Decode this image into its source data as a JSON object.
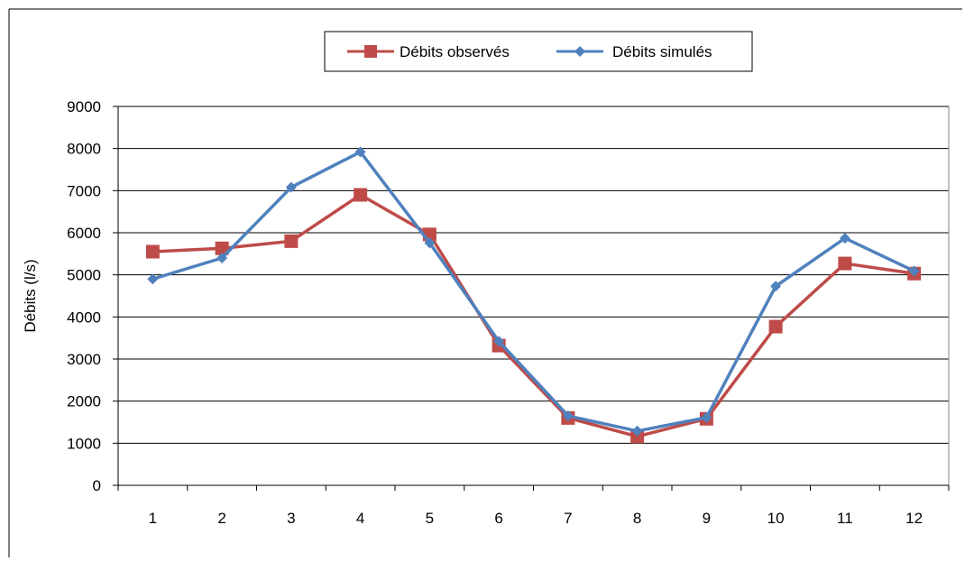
{
  "chart_data": {
    "type": "line",
    "title": "",
    "xlabel": "",
    "ylabel": "Débits (l/s)",
    "categories": [
      "1",
      "2",
      "3",
      "4",
      "5",
      "6",
      "7",
      "8",
      "9",
      "10",
      "11",
      "12"
    ],
    "ylim": [
      0,
      9000
    ],
    "yticks": [
      "0",
      "1000",
      "2000",
      "3000",
      "4000",
      "5000",
      "6000",
      "7000",
      "8000",
      "9000"
    ],
    "grid": true,
    "legend_position": "top-center",
    "series": [
      {
        "name": "Débits observés",
        "color": "#BE4B48",
        "marker": "square",
        "values": [
          5550,
          5630,
          5800,
          6900,
          5960,
          3320,
          1600,
          1160,
          1580,
          3770,
          5270,
          5030
        ]
      },
      {
        "name": "Débits simulés",
        "color": "#4F81BD",
        "marker": "diamond",
        "values": [
          4900,
          5400,
          7080,
          7920,
          5760,
          3420,
          1650,
          1290,
          1610,
          4730,
          5870,
          5090
        ]
      }
    ]
  }
}
